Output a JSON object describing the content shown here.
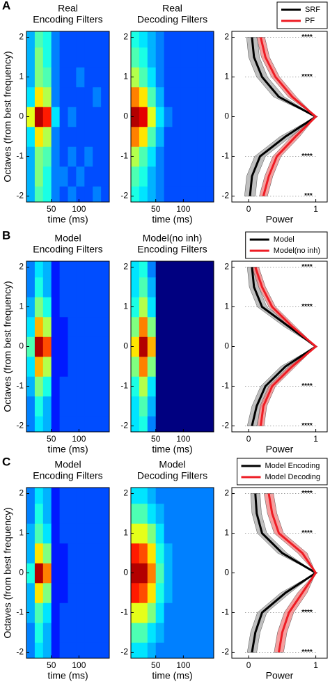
{
  "chart_data": [
    {
      "type": "heatmap",
      "panel_label": "A",
      "title": [
        "Real",
        "Encoding Filters"
      ],
      "xlabel": "time (ms)",
      "ylabel": "Octaves (from best frequency)",
      "colormap": "jet",
      "x": [
        12.5,
        27.5,
        42.5,
        57.5,
        72.5,
        87.5,
        102.5,
        117.5,
        132.5,
        147.5
      ],
      "y": [
        -2,
        -1.5,
        -1,
        -0.5,
        0,
        0.5,
        1,
        1.5,
        2
      ],
      "xlim": [
        5,
        155
      ],
      "ylim": [
        -2.15,
        2.15
      ],
      "xticks": [
        50,
        100
      ],
      "yticks": [
        -2,
        -1,
        0,
        1,
        2
      ],
      "values": [
        [
          0.3,
          0.45,
          0.4,
          0.25,
          0.2,
          0.25,
          0.2,
          0.2,
          0.25,
          0.2
        ],
        [
          0.3,
          0.5,
          0.4,
          0.25,
          0.25,
          0.2,
          0.25,
          0.2,
          0.2,
          0.2
        ],
        [
          0.3,
          0.5,
          0.45,
          0.25,
          0.2,
          0.25,
          0.2,
          0.25,
          0.2,
          0.2
        ],
        [
          0.35,
          0.65,
          0.55,
          0.25,
          0.2,
          0.2,
          0.2,
          0.2,
          0.2,
          0.2
        ],
        [
          0.6,
          0.95,
          0.85,
          0.35,
          0.2,
          0.25,
          0.2,
          0.2,
          0.2,
          0.2
        ],
        [
          0.35,
          0.65,
          0.55,
          0.25,
          0.2,
          0.2,
          0.2,
          0.2,
          0.25,
          0.2
        ],
        [
          0.3,
          0.5,
          0.45,
          0.25,
          0.2,
          0.2,
          0.25,
          0.2,
          0.2,
          0.2
        ],
        [
          0.3,
          0.5,
          0.4,
          0.25,
          0.2,
          0.2,
          0.2,
          0.2,
          0.2,
          0.2
        ],
        [
          0.3,
          0.45,
          0.4,
          0.25,
          0.2,
          0.2,
          0.2,
          0.2,
          0.2,
          0.2
        ]
      ]
    },
    {
      "type": "heatmap",
      "title": [
        "Real",
        "Decoding Filters"
      ],
      "xlabel": "time (ms)",
      "colormap": "jet",
      "x": [
        12.5,
        27.5,
        42.5,
        57.5,
        72.5,
        87.5,
        102.5,
        117.5,
        132.5,
        147.5
      ],
      "y": [
        -2,
        -1.5,
        -1,
        -0.5,
        0,
        0.5,
        1,
        1.5,
        2
      ],
      "xlim": [
        5,
        155
      ],
      "ylim": [
        -2.15,
        2.15
      ],
      "xticks": [
        50,
        100
      ],
      "yticks": [
        -2,
        -1,
        0,
        1,
        2
      ],
      "values": [
        [
          0.4,
          0.35,
          0.3,
          0.25,
          0.2,
          0.2,
          0.2,
          0.2,
          0.2,
          0.2
        ],
        [
          0.45,
          0.4,
          0.3,
          0.25,
          0.2,
          0.2,
          0.2,
          0.2,
          0.2,
          0.2
        ],
        [
          0.55,
          0.45,
          0.35,
          0.25,
          0.2,
          0.2,
          0.2,
          0.2,
          0.2,
          0.2
        ],
        [
          0.75,
          0.65,
          0.45,
          0.3,
          0.2,
          0.2,
          0.2,
          0.2,
          0.2,
          0.2
        ],
        [
          0.95,
          0.9,
          0.6,
          0.35,
          0.25,
          0.2,
          0.2,
          0.2,
          0.2,
          0.2
        ],
        [
          0.75,
          0.65,
          0.45,
          0.3,
          0.2,
          0.2,
          0.2,
          0.2,
          0.2,
          0.2
        ],
        [
          0.55,
          0.45,
          0.35,
          0.25,
          0.2,
          0.2,
          0.2,
          0.2,
          0.2,
          0.2
        ],
        [
          0.45,
          0.4,
          0.3,
          0.25,
          0.2,
          0.2,
          0.2,
          0.2,
          0.2,
          0.2
        ],
        [
          0.4,
          0.35,
          0.3,
          0.25,
          0.2,
          0.2,
          0.2,
          0.2,
          0.2,
          0.2
        ]
      ]
    },
    {
      "type": "line",
      "xlabel": "Power",
      "y": [
        -2,
        -1.5,
        -1,
        -0.5,
        0,
        0.5,
        1,
        1.5,
        2
      ],
      "xlim": [
        -0.25,
        1.17
      ],
      "ylim": [
        -2.15,
        2.15
      ],
      "xticks": [
        0,
        1
      ],
      "yticks": [
        -2,
        -1,
        0,
        1,
        2
      ],
      "legend": "top",
      "series": [
        {
          "name": "SRF",
          "color": "#000000",
          "band_color": "#a9a9a9",
          "values": [
            0.02,
            0.05,
            0.17,
            0.55,
            1,
            0.45,
            0.2,
            0.08,
            0.05
          ],
          "band": [
            0.08,
            0.08,
            0.08,
            0.08,
            0,
            0.08,
            0.08,
            0.08,
            0.08
          ]
        },
        {
          "name": "PF",
          "color": "#ee1c24",
          "band_color": "#f08080",
          "values": [
            0.22,
            0.3,
            0.42,
            0.7,
            1,
            0.65,
            0.4,
            0.25,
            0.18
          ],
          "band": [
            0.06,
            0.06,
            0.06,
            0.06,
            0,
            0.06,
            0.06,
            0.06,
            0.06
          ]
        }
      ],
      "annotations": [
        {
          "y": 2,
          "text": "****"
        },
        {
          "y": 1,
          "text": "****"
        },
        {
          "y": -1,
          "text": "****"
        },
        {
          "y": -2,
          "text": "***"
        }
      ]
    },
    {
      "type": "heatmap",
      "panel_label": "B",
      "title": [
        "Model",
        "Encoding Filters"
      ],
      "xlabel": "time (ms)",
      "ylabel": "Octaves (from best frequency)",
      "colormap": "jet",
      "x": [
        12.5,
        27.5,
        42.5,
        57.5,
        72.5,
        87.5,
        102.5,
        117.5,
        132.5,
        147.5
      ],
      "y": [
        -2,
        -1.5,
        -1,
        -0.5,
        0,
        0.5,
        1,
        1.5,
        2
      ],
      "xlim": [
        5,
        155
      ],
      "ylim": [
        -2.15,
        2.15
      ],
      "xticks": [
        50,
        100
      ],
      "yticks": [
        -2,
        -1,
        0,
        1,
        2
      ],
      "values": [
        [
          0.25,
          0.35,
          0.3,
          0.15,
          0.2,
          0.2,
          0.2,
          0.2,
          0.2,
          0.2
        ],
        [
          0.25,
          0.4,
          0.3,
          0.15,
          0.2,
          0.2,
          0.2,
          0.2,
          0.2,
          0.2
        ],
        [
          0.3,
          0.5,
          0.4,
          0.15,
          0.2,
          0.2,
          0.2,
          0.2,
          0.2,
          0.2
        ],
        [
          0.35,
          0.7,
          0.55,
          0.15,
          0.15,
          0.2,
          0.2,
          0.2,
          0.2,
          0.2
        ],
        [
          0.45,
          0.95,
          0.8,
          0.15,
          0.15,
          0.2,
          0.2,
          0.2,
          0.2,
          0.2
        ],
        [
          0.35,
          0.7,
          0.55,
          0.15,
          0.15,
          0.2,
          0.2,
          0.2,
          0.2,
          0.2
        ],
        [
          0.3,
          0.5,
          0.4,
          0.15,
          0.2,
          0.2,
          0.2,
          0.2,
          0.2,
          0.2
        ],
        [
          0.25,
          0.4,
          0.3,
          0.15,
          0.2,
          0.2,
          0.2,
          0.2,
          0.2,
          0.2
        ],
        [
          0.25,
          0.35,
          0.3,
          0.15,
          0.2,
          0.2,
          0.2,
          0.2,
          0.2,
          0.2
        ]
      ]
    },
    {
      "type": "heatmap",
      "title": [
        "Model(no inh)",
        "Encoding Filters"
      ],
      "xlabel": "time (ms)",
      "colormap": "jet",
      "x": [
        12.5,
        27.5,
        42.5,
        57.5,
        72.5,
        87.5,
        102.5,
        117.5,
        132.5,
        147.5
      ],
      "y": [
        -2,
        -1.5,
        -1,
        -0.5,
        0,
        0.5,
        1,
        1.5,
        2
      ],
      "xlim": [
        5,
        155
      ],
      "ylim": [
        -2.15,
        2.15
      ],
      "xticks": [
        50,
        100
      ],
      "yticks": [
        -2,
        -1,
        0,
        1,
        2
      ],
      "values": [
        [
          0.35,
          0.4,
          0.25,
          0,
          0,
          0,
          0,
          0,
          0,
          0
        ],
        [
          0.35,
          0.45,
          0.3,
          0,
          0,
          0,
          0,
          0,
          0,
          0
        ],
        [
          0.4,
          0.55,
          0.35,
          0,
          0,
          0,
          0,
          0,
          0,
          0
        ],
        [
          0.5,
          0.75,
          0.5,
          0,
          0,
          0,
          0,
          0,
          0,
          0
        ],
        [
          0.65,
          0.95,
          0.7,
          0,
          0,
          0,
          0,
          0,
          0,
          0
        ],
        [
          0.5,
          0.75,
          0.5,
          0,
          0,
          0,
          0,
          0,
          0,
          0
        ],
        [
          0.4,
          0.55,
          0.35,
          0,
          0,
          0,
          0,
          0,
          0,
          0
        ],
        [
          0.35,
          0.45,
          0.3,
          0,
          0,
          0,
          0,
          0,
          0,
          0
        ],
        [
          0.35,
          0.4,
          0.25,
          0,
          0,
          0,
          0,
          0,
          0,
          0
        ]
      ]
    },
    {
      "type": "line",
      "xlabel": "Power",
      "y": [
        -2,
        -1.5,
        -1,
        -0.5,
        0,
        0.5,
        1,
        1.5,
        2
      ],
      "xlim": [
        -0.25,
        1.17
      ],
      "ylim": [
        -2.15,
        2.15
      ],
      "xticks": [
        0,
        1
      ],
      "yticks": [
        -2,
        -1,
        0,
        1,
        2
      ],
      "legend": "top",
      "series": [
        {
          "name": "Model",
          "color": "#000000",
          "band_color": "#a9a9a9",
          "values": [
            0.05,
            0.12,
            0.25,
            0.55,
            1,
            0.6,
            0.2,
            0.08,
            0.05
          ],
          "band": [
            0.07,
            0.07,
            0.07,
            0.07,
            0,
            0.07,
            0.07,
            0.07,
            0.07
          ]
        },
        {
          "name": "Model(no inh)",
          "color": "#ee1c24",
          "band_color": "#f08080",
          "values": [
            0.18,
            0.22,
            0.35,
            0.65,
            1,
            0.65,
            0.35,
            0.2,
            0.1
          ],
          "band": [
            0.05,
            0.05,
            0.05,
            0.05,
            0,
            0.05,
            0.05,
            0.05,
            0.05
          ]
        }
      ],
      "annotations": [
        {
          "y": 2,
          "text": "****"
        },
        {
          "y": 1,
          "text": "****"
        },
        {
          "y": -1,
          "text": "****"
        },
        {
          "y": -2,
          "text": "****"
        }
      ]
    },
    {
      "type": "heatmap",
      "panel_label": "C",
      "title": [
        "Model",
        "Encoding Filters"
      ],
      "xlabel": "time (ms)",
      "ylabel": "Octaves (from best frequency)",
      "colormap": "jet",
      "x": [
        12.5,
        27.5,
        42.5,
        57.5,
        72.5,
        87.5,
        102.5,
        117.5,
        132.5,
        147.5
      ],
      "y": [
        -2,
        -1.5,
        -1,
        -0.5,
        0,
        0.5,
        1,
        1.5,
        2
      ],
      "xlim": [
        5,
        155
      ],
      "ylim": [
        -2.15,
        2.15
      ],
      "xticks": [
        50,
        100
      ],
      "yticks": [
        -2,
        -1,
        0,
        1,
        2
      ],
      "values": [
        [
          0.25,
          0.35,
          0.3,
          0.15,
          0.2,
          0.2,
          0.2,
          0.2,
          0.2,
          0.2
        ],
        [
          0.25,
          0.4,
          0.3,
          0.15,
          0.2,
          0.2,
          0.2,
          0.2,
          0.2,
          0.2
        ],
        [
          0.3,
          0.45,
          0.35,
          0.15,
          0.2,
          0.2,
          0.2,
          0.2,
          0.2,
          0.2
        ],
        [
          0.3,
          0.65,
          0.5,
          0.15,
          0.15,
          0.2,
          0.2,
          0.2,
          0.2,
          0.2
        ],
        [
          0.4,
          0.95,
          0.75,
          0.15,
          0.15,
          0.2,
          0.2,
          0.2,
          0.2,
          0.2
        ],
        [
          0.3,
          0.65,
          0.5,
          0.15,
          0.15,
          0.2,
          0.2,
          0.2,
          0.2,
          0.2
        ],
        [
          0.3,
          0.45,
          0.35,
          0.15,
          0.2,
          0.2,
          0.2,
          0.2,
          0.2,
          0.2
        ],
        [
          0.25,
          0.4,
          0.3,
          0.15,
          0.2,
          0.2,
          0.2,
          0.2,
          0.2,
          0.2
        ],
        [
          0.25,
          0.35,
          0.3,
          0.15,
          0.2,
          0.2,
          0.2,
          0.2,
          0.2,
          0.2
        ]
      ]
    },
    {
      "type": "heatmap",
      "title": [
        "Model",
        "Decoding Filters"
      ],
      "xlabel": "time (ms)",
      "colormap": "jet",
      "x": [
        12.5,
        27.5,
        42.5,
        57.5,
        72.5,
        87.5,
        102.5,
        117.5,
        132.5,
        147.5
      ],
      "y": [
        -2,
        -1.5,
        -1,
        -0.5,
        0,
        0.5,
        1,
        1.5,
        2
      ],
      "xlim": [
        5,
        155
      ],
      "ylim": [
        -2.15,
        2.15
      ],
      "xticks": [
        50,
        100
      ],
      "yticks": [
        -2,
        -1,
        0,
        1,
        2
      ],
      "values": [
        [
          0.35,
          0.35,
          0.3,
          0.25,
          0.25,
          0.25,
          0.25,
          0.25,
          0.25,
          0.25
        ],
        [
          0.45,
          0.45,
          0.35,
          0.3,
          0.25,
          0.25,
          0.25,
          0.25,
          0.25,
          0.25
        ],
        [
          0.6,
          0.6,
          0.5,
          0.35,
          0.25,
          0.25,
          0.25,
          0.25,
          0.25,
          0.25
        ],
        [
          0.85,
          0.8,
          0.65,
          0.4,
          0.3,
          0.25,
          0.25,
          0.25,
          0.25,
          0.25
        ],
        [
          0.95,
          0.95,
          0.75,
          0.45,
          0.3,
          0.25,
          0.25,
          0.25,
          0.25,
          0.25
        ],
        [
          0.85,
          0.8,
          0.65,
          0.4,
          0.3,
          0.25,
          0.25,
          0.25,
          0.25,
          0.25
        ],
        [
          0.6,
          0.6,
          0.5,
          0.35,
          0.25,
          0.25,
          0.25,
          0.25,
          0.25,
          0.25
        ],
        [
          0.45,
          0.45,
          0.35,
          0.3,
          0.25,
          0.25,
          0.25,
          0.25,
          0.25,
          0.25
        ],
        [
          0.35,
          0.35,
          0.3,
          0.25,
          0.25,
          0.25,
          0.25,
          0.25,
          0.25,
          0.25
        ]
      ]
    },
    {
      "type": "line",
      "xlabel": "Power",
      "y": [
        -2,
        -1.5,
        -1,
        -0.5,
        0,
        0.5,
        1,
        1.5,
        2
      ],
      "xlim": [
        -0.25,
        1.17
      ],
      "ylim": [
        -2.15,
        2.15
      ],
      "xticks": [
        0,
        1
      ],
      "yticks": [
        -2,
        -1,
        0,
        1,
        2
      ],
      "legend": "top",
      "series": [
        {
          "name": "Model Encoding",
          "color": "#000000",
          "band_color": "#a9a9a9",
          "values": [
            0.05,
            0.1,
            0.2,
            0.55,
            1,
            0.5,
            0.2,
            0.12,
            0.1
          ],
          "band": [
            0.07,
            0.07,
            0.07,
            0.07,
            0,
            0.07,
            0.07,
            0.07,
            0.07
          ]
        },
        {
          "name": "Model Decoding",
          "color": "#ee1c24",
          "band_color": "#f08080",
          "values": [
            0.45,
            0.5,
            0.6,
            0.8,
            1,
            0.8,
            0.45,
            0.35,
            0.3
          ],
          "band": [
            0.07,
            0.07,
            0.07,
            0.07,
            0,
            0.07,
            0.07,
            0.07,
            0.07
          ]
        }
      ],
      "annotations": [
        {
          "y": 2,
          "text": "****"
        },
        {
          "y": 1,
          "text": "****"
        },
        {
          "y": -1,
          "text": "****"
        },
        {
          "y": -2,
          "text": "****"
        }
      ]
    }
  ]
}
